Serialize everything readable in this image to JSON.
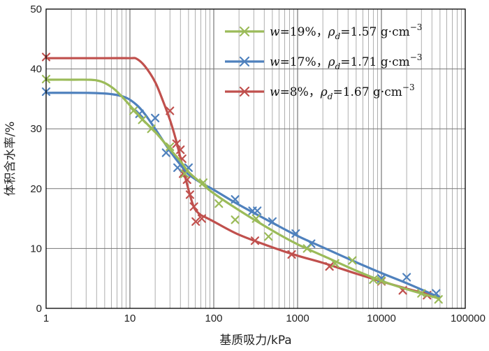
{
  "chart_data": {
    "type": "line",
    "xlabel": "基质吸力/kPa",
    "ylabel": "体积含水率/%",
    "x_scale": "log",
    "xlim": [
      1,
      100000
    ],
    "ylim": [
      0,
      50
    ],
    "x_ticks": [
      "1",
      "10",
      "100",
      "1000",
      "10000",
      "100000"
    ],
    "y_ticks": [
      "0",
      "10",
      "20",
      "30",
      "40",
      "50"
    ],
    "grid": true,
    "legend_position": "top-right",
    "series": [
      {
        "name": "w=19%，ρd=1.57 g·cm⁻³",
        "legend_w": "19%",
        "legend_rho": "1.57",
        "color": "#9bbb59",
        "curve": [
          [
            1,
            38.2
          ],
          [
            2,
            38.2
          ],
          [
            4,
            38.1
          ],
          [
            6,
            37.0
          ],
          [
            8,
            35.4
          ],
          [
            10,
            33.9
          ],
          [
            15,
            31.2
          ],
          [
            20,
            29.5
          ],
          [
            30,
            26.6
          ],
          [
            40,
            24.6
          ],
          [
            50,
            22.8
          ],
          [
            70,
            21.0
          ],
          [
            100,
            19.2
          ],
          [
            200,
            16.4
          ],
          [
            500,
            13.0
          ],
          [
            1000,
            10.7
          ],
          [
            2000,
            8.8
          ],
          [
            5000,
            6.3
          ],
          [
            10000,
            4.6
          ],
          [
            20000,
            3.2
          ],
          [
            50000,
            1.6
          ]
        ],
        "points": [
          [
            1,
            38.3
          ],
          [
            11,
            33.0
          ],
          [
            14,
            31.5
          ],
          [
            18,
            30.0
          ],
          [
            30,
            27.0
          ],
          [
            45,
            22.5
          ],
          [
            75,
            21.0
          ],
          [
            115,
            17.5
          ],
          [
            180,
            14.8
          ],
          [
            320,
            15.0
          ],
          [
            450,
            12.0
          ],
          [
            1300,
            10.0
          ],
          [
            2800,
            7.5
          ],
          [
            4500,
            8.0
          ],
          [
            8000,
            4.8
          ],
          [
            10000,
            4.6
          ],
          [
            30000,
            2.5
          ],
          [
            48000,
            1.5
          ]
        ]
      },
      {
        "name": "w=17%，ρd=1.71 g·cm⁻³",
        "legend_w": "17%",
        "legend_rho": "1.71",
        "color": "#4f81bd",
        "curve": [
          [
            1,
            36.0
          ],
          [
            3,
            36.0
          ],
          [
            6,
            35.8
          ],
          [
            9,
            35.2
          ],
          [
            12,
            34.0
          ],
          [
            15,
            32.5
          ],
          [
            20,
            30.0
          ],
          [
            30,
            26.3
          ],
          [
            40,
            24.0
          ],
          [
            50,
            22.4
          ],
          [
            70,
            21.0
          ],
          [
            100,
            19.8
          ],
          [
            200,
            17.3
          ],
          [
            500,
            14.3
          ],
          [
            1000,
            12.1
          ],
          [
            2000,
            10.2
          ],
          [
            5000,
            7.7
          ],
          [
            10000,
            5.9
          ],
          [
            20000,
            4.2
          ],
          [
            50000,
            1.8
          ]
        ],
        "points": [
          [
            1,
            36.2
          ],
          [
            13,
            32.5
          ],
          [
            20,
            31.8
          ],
          [
            27,
            26.0
          ],
          [
            37,
            23.5
          ],
          [
            50,
            23.5
          ],
          [
            180,
            18.2
          ],
          [
            290,
            16.3
          ],
          [
            330,
            16.3
          ],
          [
            500,
            14.5
          ],
          [
            950,
            12.5
          ],
          [
            1450,
            10.8
          ],
          [
            10000,
            5.0
          ],
          [
            20000,
            5.2
          ],
          [
            45000,
            2.5
          ]
        ]
      },
      {
        "name": "w=8%，ρd=1.67 g·cm⁻³",
        "legend_w": "8%",
        "legend_rho": "1.67",
        "color": "#c0504d",
        "curve": [
          [
            1,
            41.8
          ],
          [
            5,
            41.8
          ],
          [
            10,
            41.8
          ],
          [
            12,
            41.7
          ],
          [
            15,
            40.5
          ],
          [
            20,
            37.8
          ],
          [
            25,
            34.5
          ],
          [
            30,
            31.5
          ],
          [
            35,
            28.4
          ],
          [
            40,
            25.2
          ],
          [
            45,
            22.3
          ],
          [
            50,
            19.8
          ],
          [
            55,
            17.8
          ],
          [
            60,
            16.5
          ],
          [
            70,
            15.6
          ],
          [
            80,
            15.2
          ],
          [
            100,
            14.5
          ],
          [
            200,
            12.3
          ],
          [
            500,
            10.2
          ],
          [
            1000,
            8.8
          ],
          [
            2000,
            7.6
          ],
          [
            5000,
            5.8
          ],
          [
            10000,
            4.5
          ],
          [
            20000,
            3.3
          ],
          [
            50000,
            1.8
          ]
        ],
        "points": [
          [
            1,
            42.0
          ],
          [
            30,
            33.0
          ],
          [
            36,
            27.5
          ],
          [
            40,
            26.5
          ],
          [
            42,
            25.0
          ],
          [
            43,
            22.5
          ],
          [
            48,
            21.5
          ],
          [
            52,
            19.0
          ],
          [
            58,
            17.0
          ],
          [
            61,
            14.5
          ],
          [
            72,
            15.0
          ],
          [
            310,
            11.3
          ],
          [
            850,
            9.0
          ],
          [
            2400,
            7.0
          ],
          [
            10000,
            4.5
          ],
          [
            18000,
            3.0
          ],
          [
            35000,
            2.2
          ]
        ]
      }
    ]
  }
}
